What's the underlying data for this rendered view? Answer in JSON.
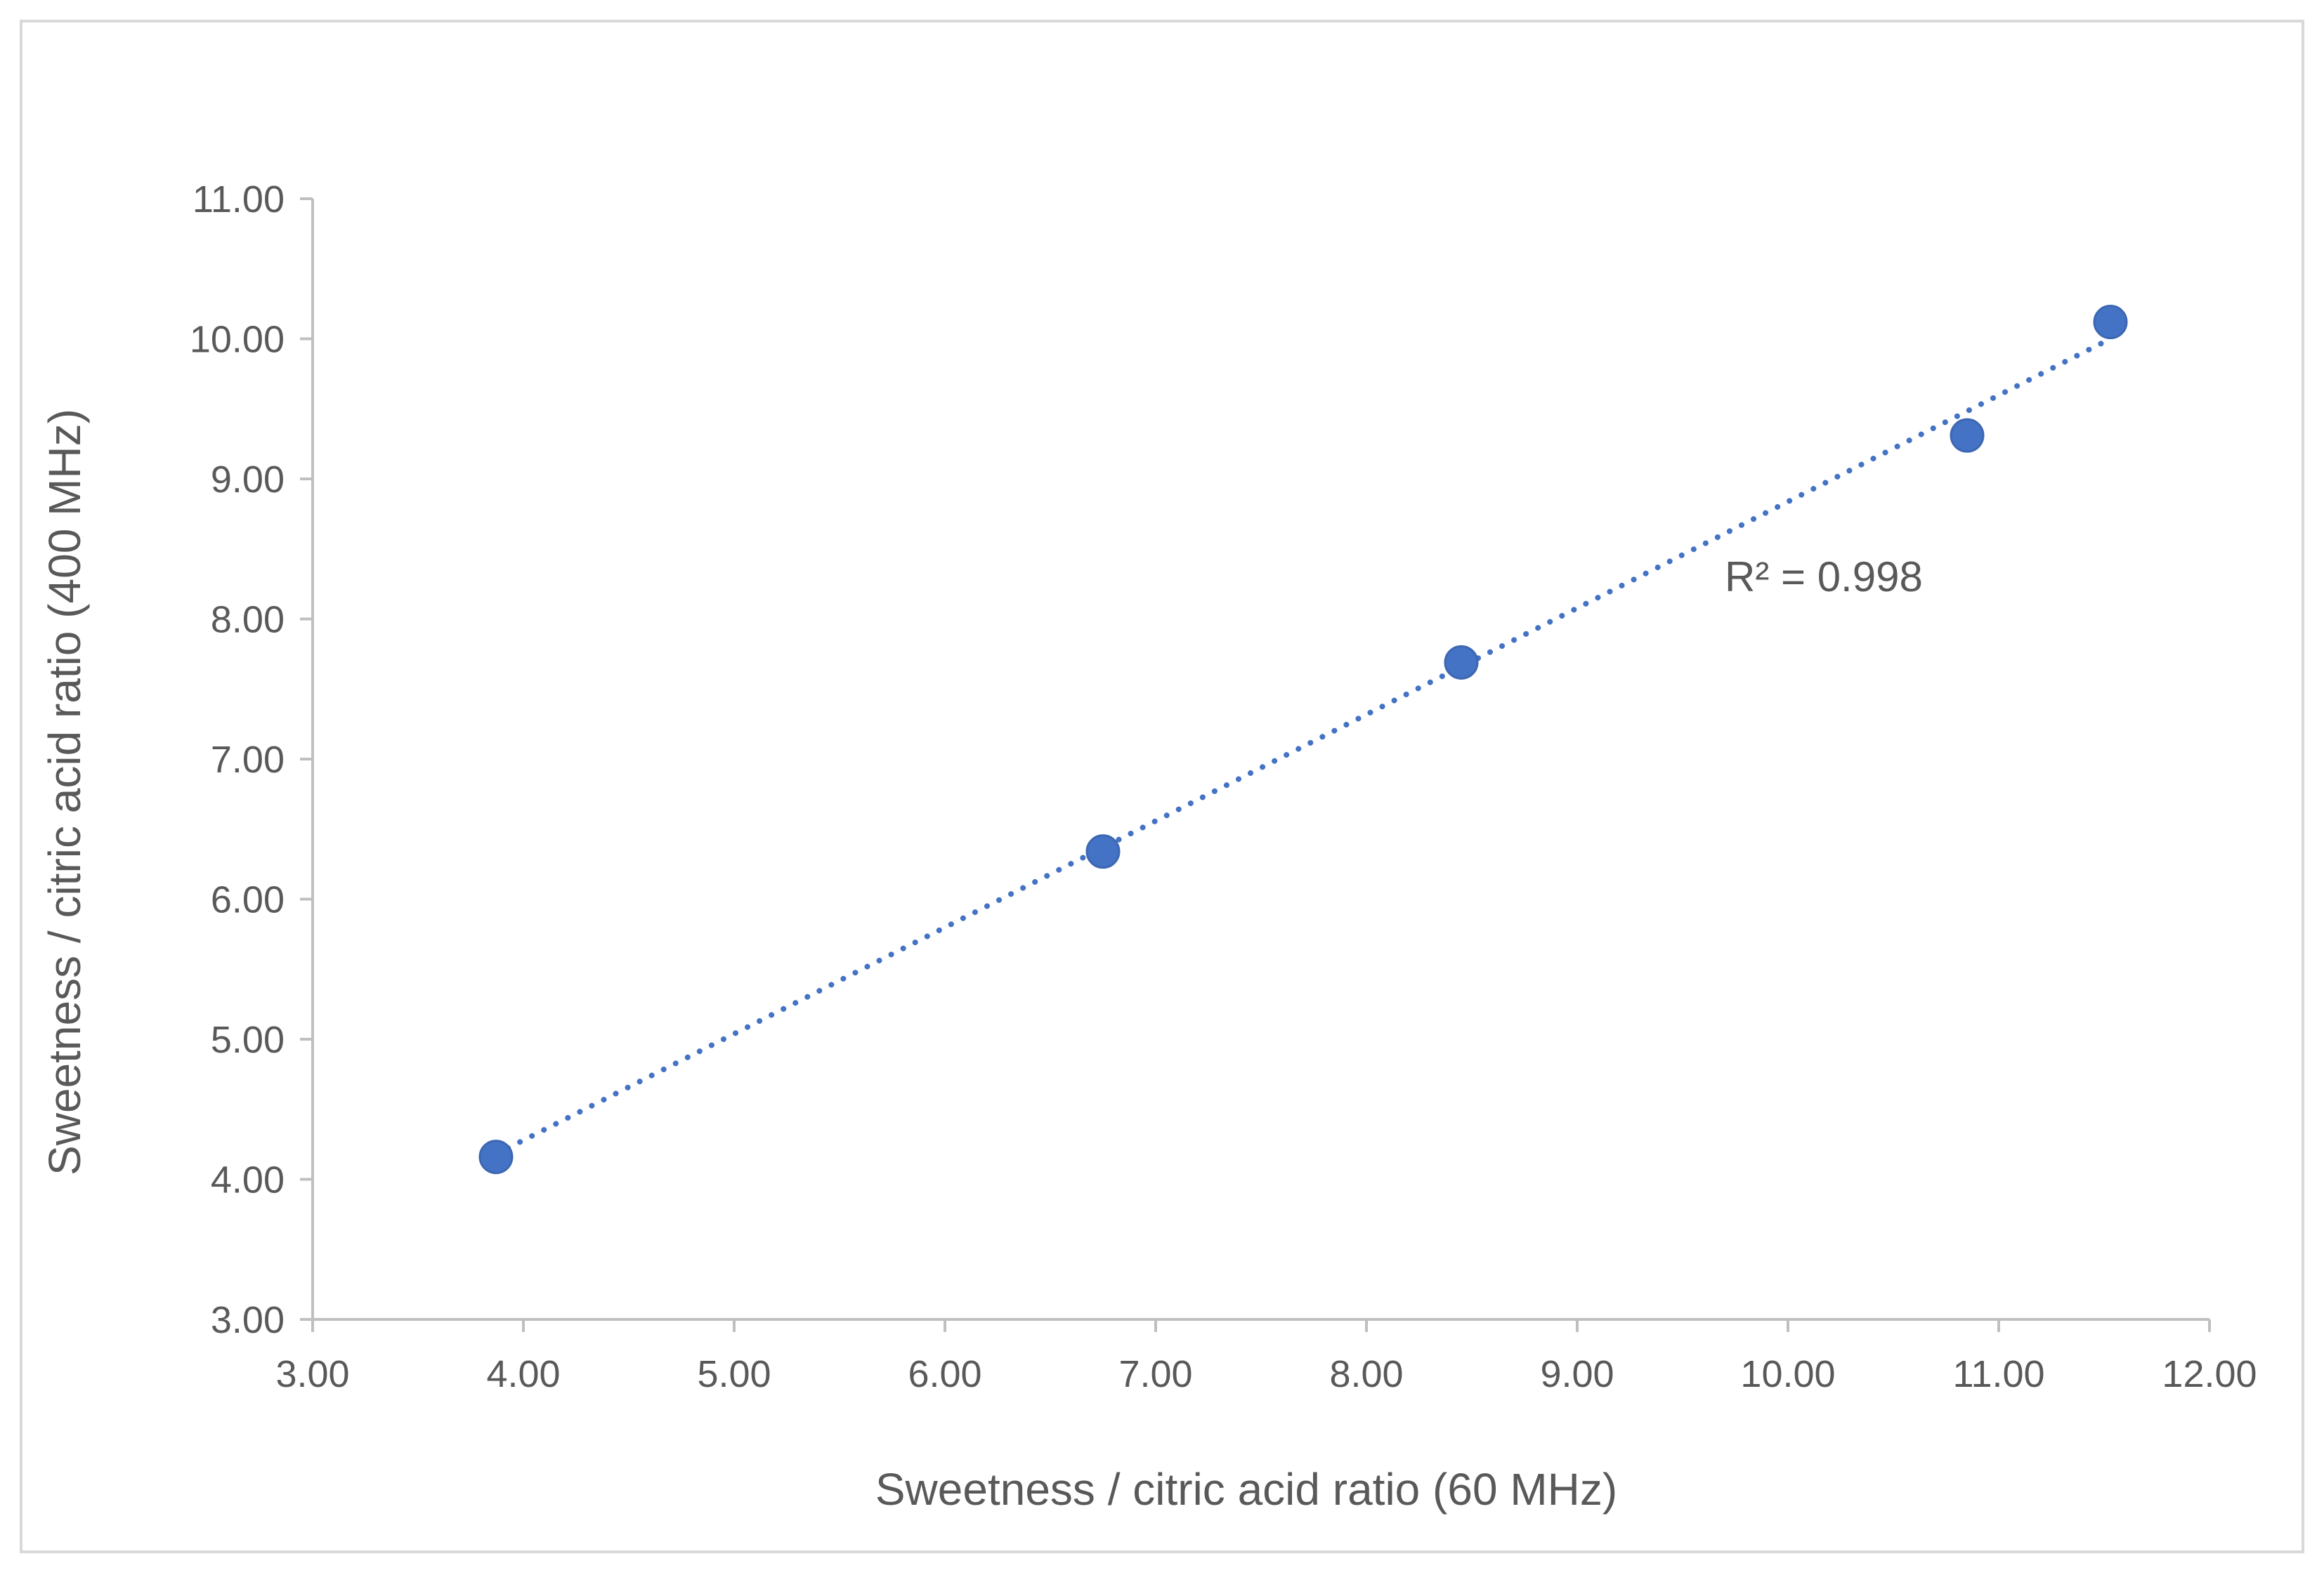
{
  "chart_data": {
    "type": "scatter",
    "title": "",
    "xlabel": "Sweetness / citric acid ratio (60 MHz)",
    "ylabel": "Sweetness / citric acid ratio (400 MHz)",
    "xlim": [
      3.0,
      12.0
    ],
    "ylim": [
      3.0,
      11.0
    ],
    "xticks": [
      "3.00",
      "4.00",
      "5.00",
      "6.00",
      "7.00",
      "8.00",
      "9.00",
      "10.00",
      "11.00",
      "12.00"
    ],
    "yticks": [
      "3.00",
      "4.00",
      "5.00",
      "6.00",
      "7.00",
      "8.00",
      "9.00",
      "10.00",
      "11.00"
    ],
    "series": [
      {
        "x": [
          3.87,
          6.75,
          8.45,
          10.85,
          11.53
        ],
        "y": [
          4.16,
          6.34,
          7.69,
          9.31,
          10.12
        ]
      }
    ],
    "trendline": {
      "style": "dotted",
      "type": "linear",
      "x_range": [
        3.87,
        11.53
      ],
      "y_range": [
        4.18,
        10.0
      ]
    },
    "annotations": [
      {
        "text": "R² = 0.998"
      }
    ],
    "grid": false,
    "legend": "none",
    "colors": {
      "marker": "#4472c4",
      "trendline": "#4472c4",
      "axis": "#bfbfbf",
      "text": "#595959"
    }
  }
}
